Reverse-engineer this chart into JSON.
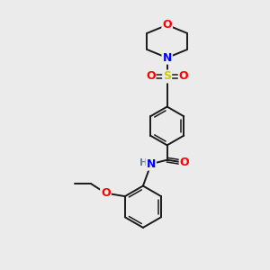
{
  "bg_color": "#ebebeb",
  "atom_colors": {
    "C": "#1a1a1a",
    "N": "#0000ff",
    "O": "#ff0000",
    "S": "#cccc00",
    "H": "#708090"
  },
  "bond_color": "#1a1a1a",
  "fig_width": 3.0,
  "fig_height": 3.0,
  "dpi": 100
}
